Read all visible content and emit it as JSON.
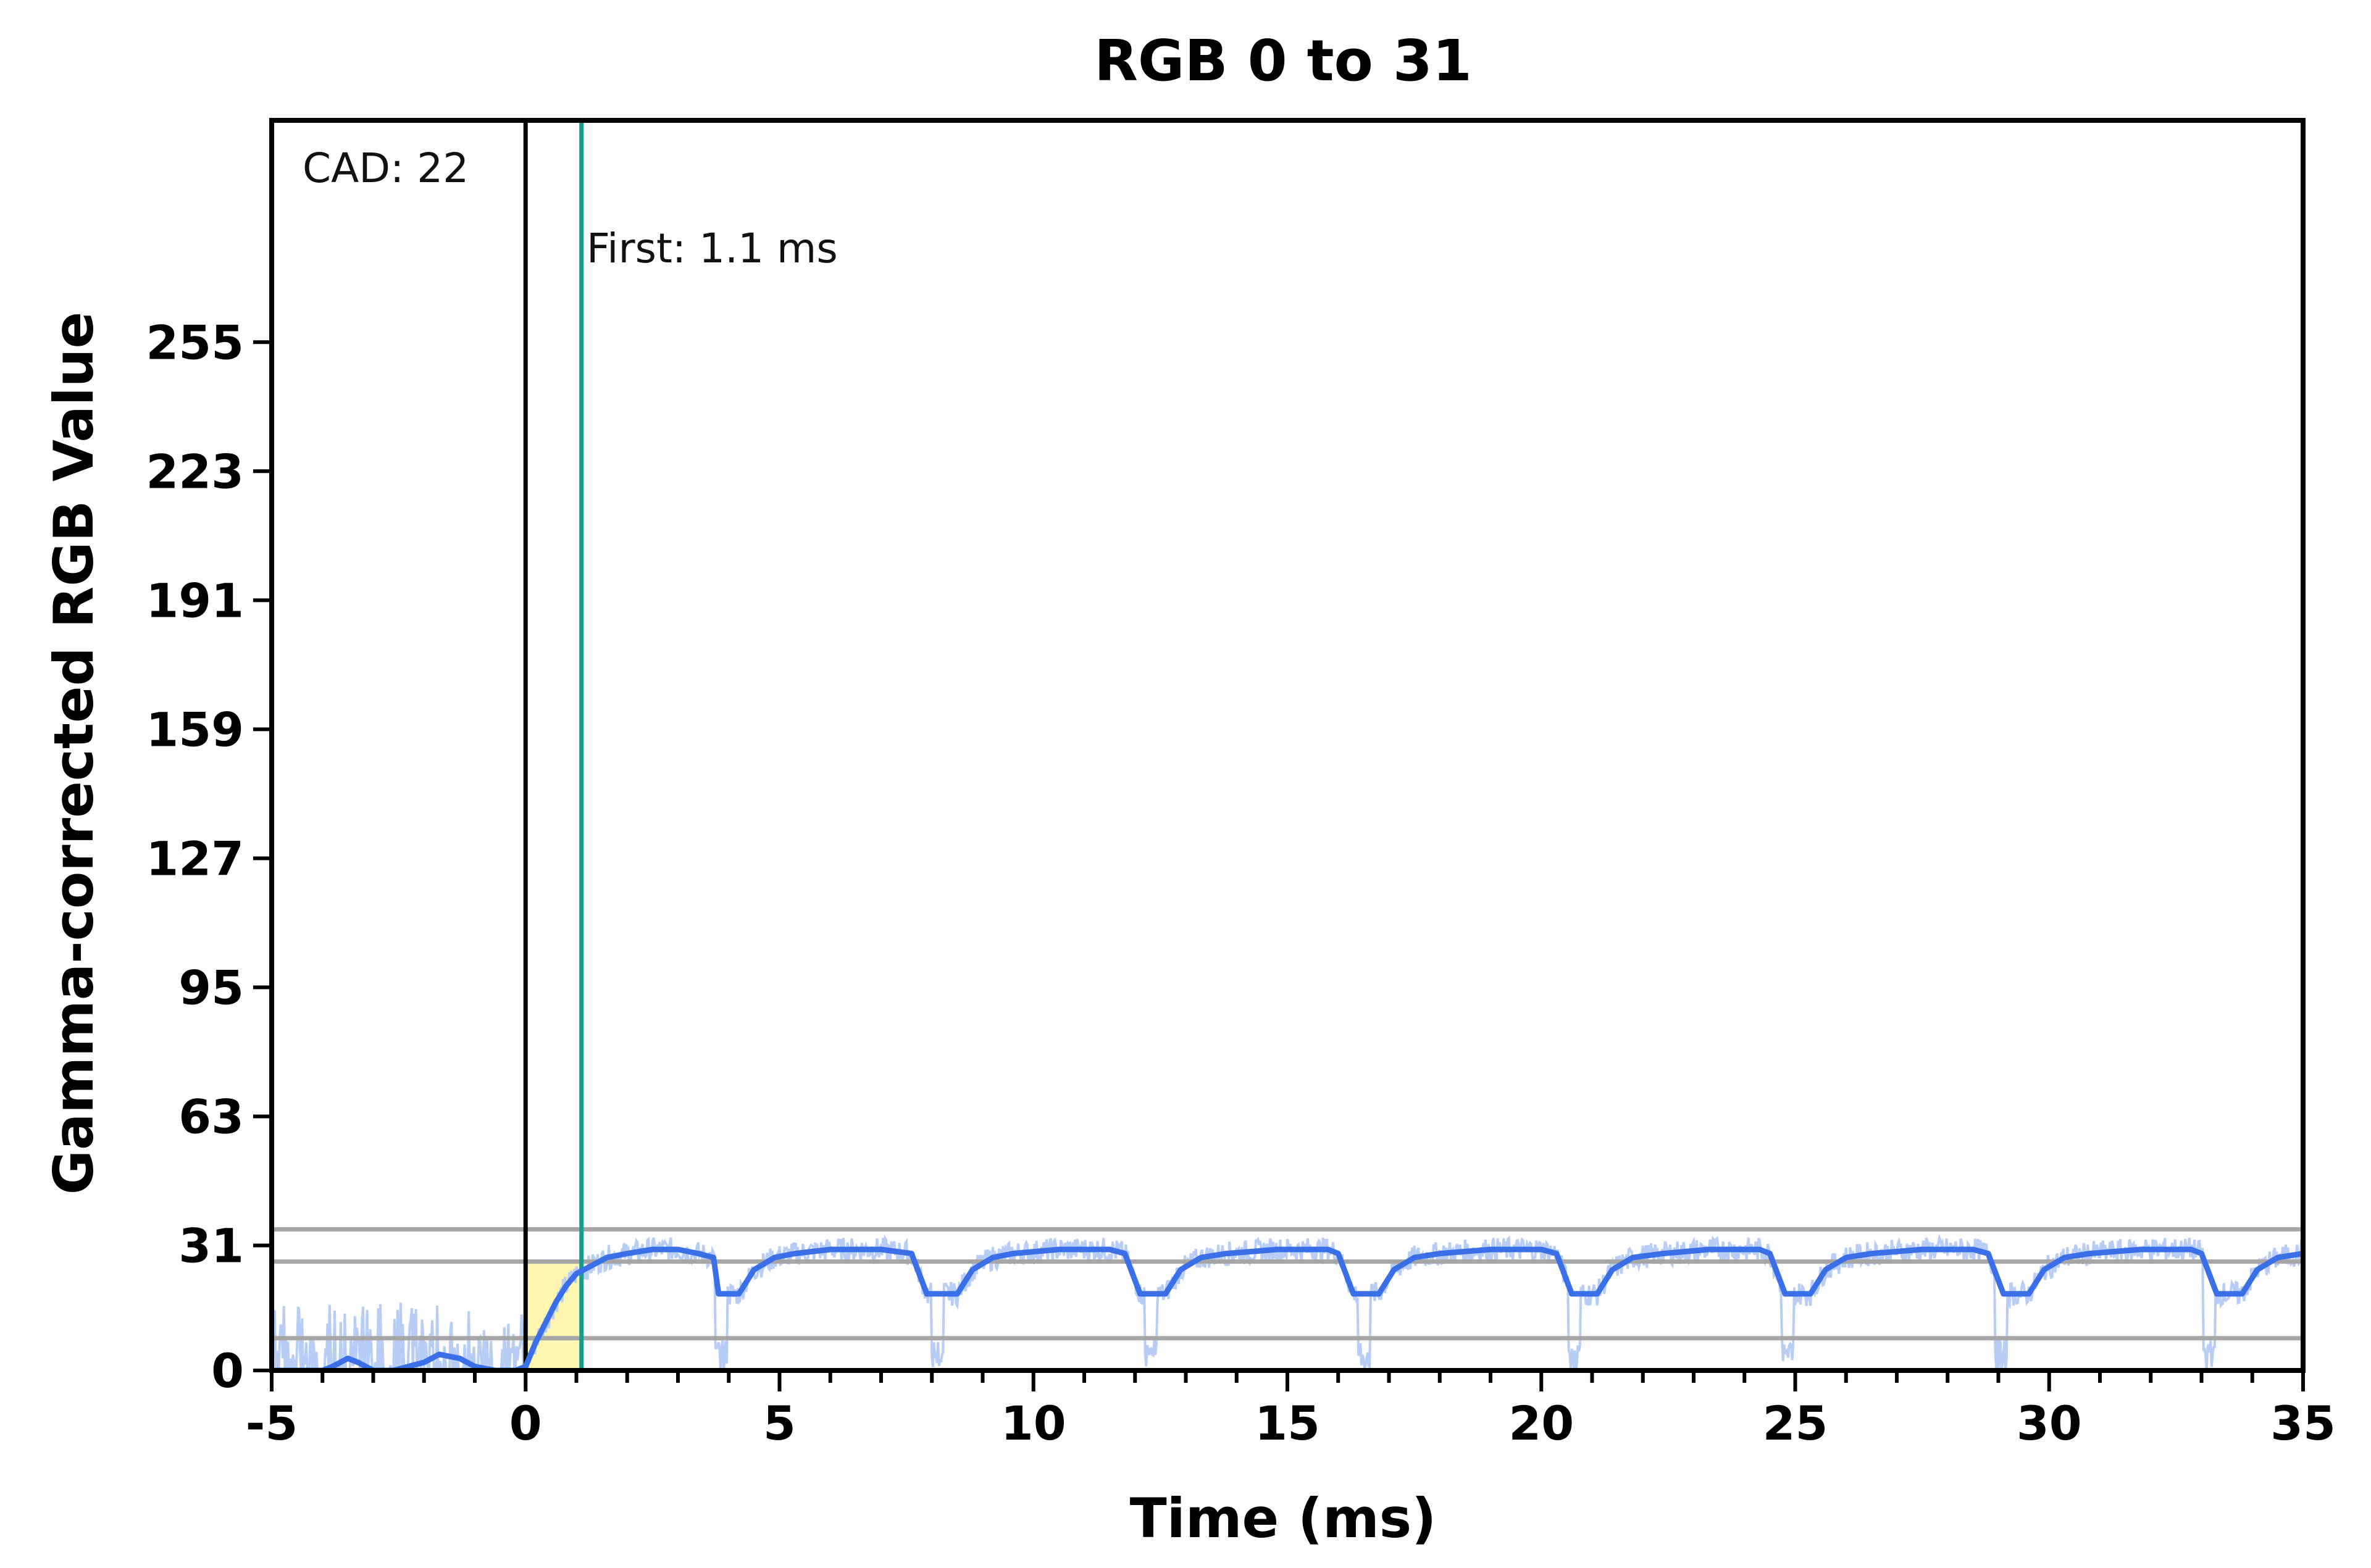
{
  "chart_data": {
    "type": "line",
    "title": "RGB 0 to 31",
    "xlabel": "Time (ms)",
    "ylabel": "Gamma-corrected RGB Value",
    "xlim": [
      -5,
      35
    ],
    "ylim": [
      0,
      310
    ],
    "x_ticks": [
      -5,
      0,
      5,
      10,
      15,
      20,
      25,
      30,
      35
    ],
    "y_ticks": [
      0,
      31,
      63,
      95,
      127,
      159,
      191,
      223,
      255
    ],
    "grid": false,
    "legend": "none",
    "annotations": {
      "cad": "CAD: 22",
      "first": "First: 1.1 ms"
    },
    "vertical_markers": [
      {
        "x": 0,
        "color": "#000000"
      },
      {
        "x": 1.1,
        "color": "#1a9a8c"
      }
    ],
    "reference_lines": [
      35,
      27,
      8
    ],
    "highlight_region": {
      "x": [
        0,
        1.1
      ],
      "y": [
        0,
        27
      ],
      "color": "#fdf5b0"
    },
    "series": [
      {
        "role": "smoothed",
        "color": "#3a6fe8",
        "x": [
          -5,
          -4,
          -3.8,
          -3.5,
          -3.3,
          -3,
          -2.6,
          -2,
          -1.7,
          -1.3,
          -1,
          -0.6,
          -0.2,
          0,
          0.2,
          0.4,
          0.6,
          0.8,
          1.0,
          1.3,
          1.6,
          2.0,
          2.5,
          3.0,
          3.4,
          3.7,
          3.8,
          4.2,
          4.5,
          4.9,
          5.3,
          6,
          7,
          7.6,
          7.9,
          8.0,
          8.5,
          8.8,
          9.2,
          9.6,
          10.5,
          11.5,
          11.8,
          12.1,
          12.2,
          12.6,
          12.9,
          13.3,
          13.8,
          14.8,
          15.8,
          16.0,
          16.3,
          16.4,
          16.8,
          17.1,
          17.5,
          18.0,
          19.0,
          20.0,
          20.3,
          20.6,
          20.7,
          21.1,
          21.4,
          21.8,
          22.4,
          23.3,
          24.3,
          24.5,
          24.8,
          24.9,
          25.3,
          25.6,
          26.0,
          26.5,
          27.5,
          28.5,
          28.8,
          29.1,
          29.2,
          29.6,
          29.9,
          30.3,
          30.8,
          31.8,
          32.8,
          33.0,
          33.3,
          33.4,
          33.8,
          34.1,
          34.5,
          35
        ],
        "values": [
          0,
          0,
          1,
          3,
          2,
          0,
          0,
          2,
          4,
          3,
          1,
          0,
          0,
          1,
          7,
          12,
          17,
          21,
          24,
          26,
          28,
          29,
          30,
          30,
          29,
          28,
          19,
          19,
          25,
          28,
          29,
          30,
          30,
          29,
          19,
          19,
          19,
          25,
          28,
          29,
          30,
          30,
          29,
          19,
          19,
          19,
          25,
          28,
          29,
          30,
          30,
          29,
          19,
          19,
          19,
          25,
          28,
          29,
          30,
          30,
          29,
          19,
          19,
          19,
          25,
          28,
          29,
          30,
          30,
          29,
          19,
          19,
          19,
          25,
          28,
          29,
          30,
          30,
          29,
          19,
          19,
          19,
          25,
          28,
          29,
          30,
          30,
          29,
          19,
          19,
          19,
          25,
          28,
          29
        ]
      },
      {
        "role": "raw",
        "color": "#b8cdf5",
        "pre_transition_range": [
          0,
          17
        ],
        "settled_range": [
          27,
          33
        ],
        "dip_minimum": 0,
        "dip_x": [
          3.85,
          8.1,
          12.3,
          16.5,
          20.65,
          24.85,
          29.05,
          33.15
        ]
      }
    ]
  }
}
